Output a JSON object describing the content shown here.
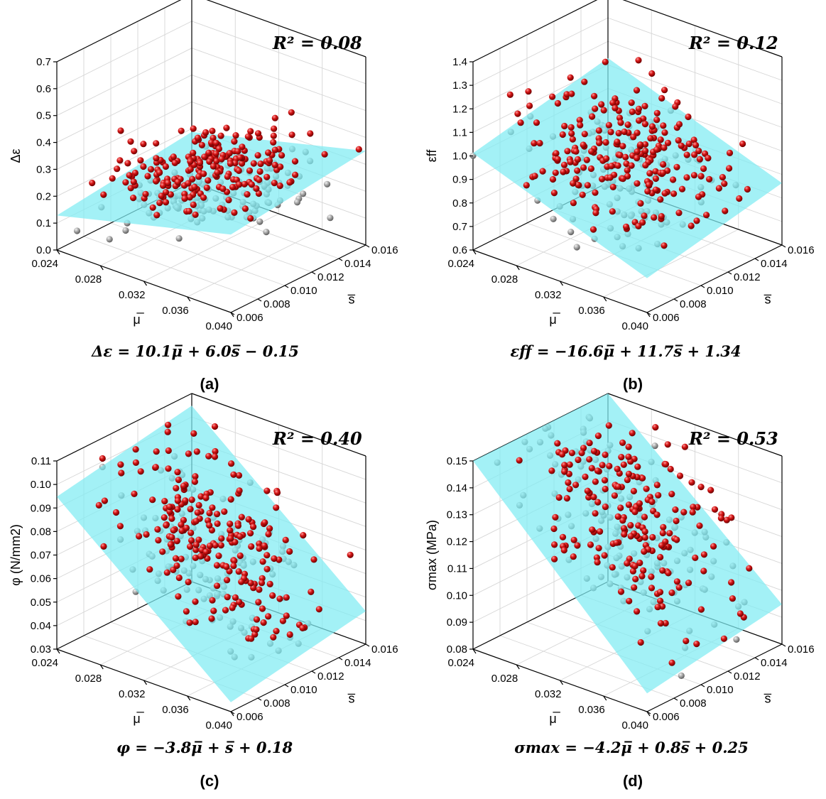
{
  "colors": {
    "above": "#cc1111",
    "below": "#9a9a9a",
    "plane": "#7fecf2"
  },
  "chart_data": [
    {
      "type": "scatter",
      "panel_label": "(a)",
      "r2_text": "0.08",
      "equation_text": "Δε = 10.1μ̅ + 6.0s̅ − 0.15",
      "coef": {
        "mu": 10.1,
        "s": 6.0,
        "c": -0.15
      },
      "zlabel": "Δε",
      "zlim": [
        0.0,
        0.7
      ],
      "zticks": [
        "0.0",
        "0.1",
        "0.2",
        "0.3",
        "0.4",
        "0.5",
        "0.6",
        "0.7"
      ],
      "noise": 0.11,
      "xlabel": "μ̅",
      "xlim": [
        0.024,
        0.04
      ],
      "xticks": [
        "0.024",
        "0.028",
        "0.032",
        "0.036",
        "0.040"
      ],
      "ylabel": "s̅",
      "ylim": [
        0.006,
        0.016
      ],
      "yticks": [
        "0.006",
        "0.008",
        "0.010",
        "0.012",
        "0.014",
        "0.016"
      ],
      "n_points": 330
    },
    {
      "type": "scatter",
      "panel_label": "(b)",
      "r2_text": "0.12",
      "equation_text": "εff = −16.6μ̅ + 11.7s̅ + 1.34",
      "coef": {
        "mu": -16.6,
        "s": 11.7,
        "c": 1.34
      },
      "zlabel": "εff",
      "zlim": [
        0.6,
        1.4
      ],
      "zticks": [
        "0.6",
        "0.7",
        "0.8",
        "0.9",
        "1.0",
        "1.1",
        "1.2",
        "1.3",
        "1.4"
      ],
      "noise": 0.12,
      "xlabel": "μ̅",
      "xlim": [
        0.024,
        0.04
      ],
      "xticks": [
        "0.024",
        "0.028",
        "0.032",
        "0.036",
        "0.040"
      ],
      "ylabel": "s̅",
      "ylim": [
        0.006,
        0.016
      ],
      "yticks": [
        "0.006",
        "0.008",
        "0.010",
        "0.012",
        "0.014",
        "0.016"
      ],
      "n_points": 330
    },
    {
      "type": "scatter",
      "panel_label": "(c)",
      "r2_text": "0.40",
      "equation_text": "φ = −3.8μ̅ + s̅ + 0.18",
      "coef": {
        "mu": -3.8,
        "s": 1.0,
        "c": 0.18
      },
      "zlabel": "φ (N/mm2)",
      "zlim": [
        0.03,
        0.11
      ],
      "zticks": [
        "0.03",
        "0.04",
        "0.05",
        "0.06",
        "0.07",
        "0.08",
        "0.09",
        "0.10",
        "0.11"
      ],
      "noise": 0.011,
      "xlabel": "μ̅",
      "xlim": [
        0.024,
        0.04
      ],
      "xticks": [
        "0.024",
        "0.028",
        "0.032",
        "0.036",
        "0.040"
      ],
      "ylabel": "s̅",
      "ylim": [
        0.006,
        0.016
      ],
      "yticks": [
        "0.006",
        "0.008",
        "0.010",
        "0.012",
        "0.014",
        "0.016"
      ],
      "n_points": 330
    },
    {
      "type": "scatter",
      "panel_label": "(d)",
      "r2_text": "0.53",
      "equation_text": "σmax = −4.2μ̅ + 0.8s̅ + 0.25",
      "coef": {
        "mu": -4.2,
        "s": 0.8,
        "c": 0.25
      },
      "zlabel": "σmax (MPa)",
      "zlim": [
        0.08,
        0.15
      ],
      "zticks": [
        "0.08",
        "0.09",
        "0.10",
        "0.11",
        "0.12",
        "0.13",
        "0.14",
        "0.15"
      ],
      "noise": 0.009,
      "xlabel": "μ̅",
      "xlim": [
        0.024,
        0.04
      ],
      "xticks": [
        "0.024",
        "0.028",
        "0.032",
        "0.036",
        "0.040"
      ],
      "ylabel": "s̅",
      "ylim": [
        0.006,
        0.016
      ],
      "yticks": [
        "0.006",
        "0.008",
        "0.010",
        "0.012",
        "0.014",
        "0.016"
      ],
      "n_points": 330
    }
  ]
}
